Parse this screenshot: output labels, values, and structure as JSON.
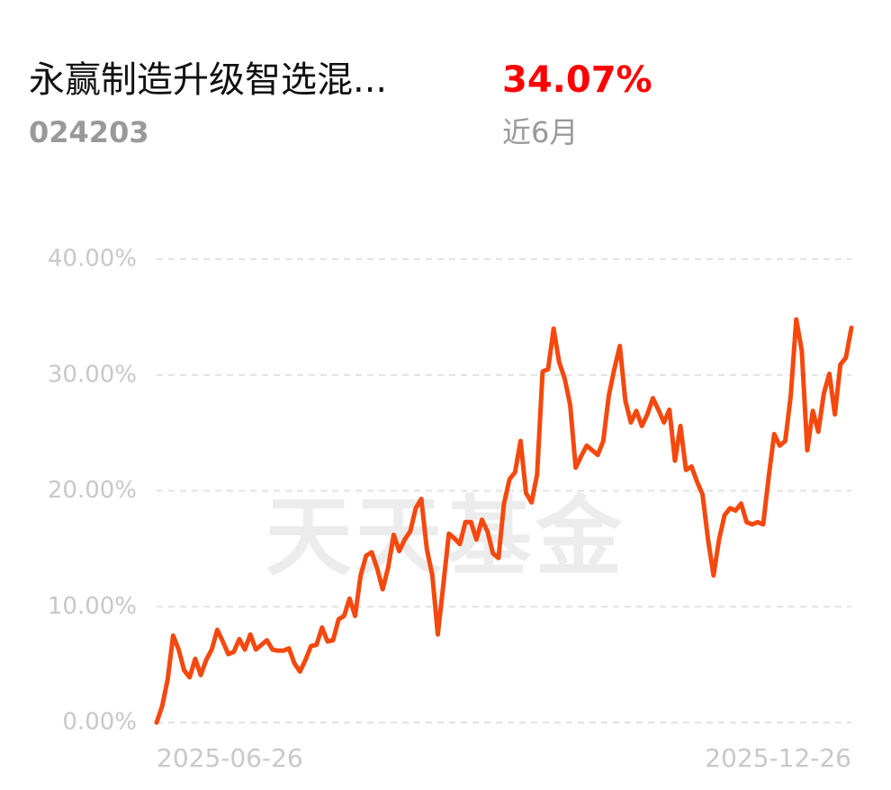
{
  "header": {
    "title": "永赢制造升级智选混...",
    "code": "024203",
    "return": "34.07%",
    "period": "近6月"
  },
  "watermark": "天天基金",
  "chart_data": {
    "type": "line",
    "categories": [
      "2025-06-26",
      null,
      null,
      null,
      null,
      null,
      null,
      null,
      null,
      null,
      null,
      null,
      null,
      null,
      null,
      null,
      null,
      null,
      null,
      null,
      null,
      null,
      null,
      null,
      null,
      null,
      null,
      null,
      null,
      null,
      null,
      null,
      null,
      null,
      null,
      null,
      null,
      null,
      null,
      null,
      null,
      null,
      null,
      null,
      null,
      null,
      null,
      null,
      null,
      null,
      null,
      null,
      null,
      null,
      null,
      null,
      null,
      null,
      null,
      null,
      null,
      null,
      null,
      null,
      null,
      null,
      null,
      null,
      null,
      null,
      null,
      null,
      null,
      null,
      null,
      null,
      null,
      null,
      null,
      null,
      null,
      null,
      null,
      null,
      null,
      null,
      null,
      null,
      null,
      null,
      null,
      null,
      null,
      null,
      null,
      null,
      null,
      null,
      null,
      null,
      null,
      null,
      null,
      null,
      null,
      null,
      null,
      null,
      null,
      null,
      null,
      null,
      null,
      null,
      null,
      null,
      null,
      null,
      null,
      null,
      null,
      null,
      null,
      null,
      null,
      null,
      "2025-12-26"
    ],
    "series": [
      {
        "color": "#f5480e",
        "values": [
          0,
          1.4,
          3.7,
          7.5,
          6.3,
          4.5,
          3.9,
          5.5,
          4.1,
          5.4,
          6.3,
          8.0,
          7.0,
          5.9,
          6.1,
          7.2,
          6.3,
          7.6,
          6.3,
          6.7,
          7.1,
          6.3,
          6.2,
          6.2,
          6.4,
          5.1,
          4.4,
          5.4,
          6.6,
          6.7,
          8.2,
          7.0,
          7.1,
          8.9,
          9.2,
          10.7,
          9.2,
          12.7,
          14.4,
          14.7,
          13.3,
          11.5,
          13.4,
          16.2,
          14.8,
          15.8,
          16.5,
          18.5,
          19.3,
          15.0,
          12.7,
          7.6,
          11.9,
          16.3,
          15.9,
          15.4,
          17.3,
          17.3,
          15.8,
          17.5,
          16.5,
          14.6,
          14.2,
          18.9,
          21.0,
          21.6,
          24.3,
          19.8,
          19.0,
          21.4,
          30.3,
          30.5,
          34.0,
          31.1,
          29.7,
          27.4,
          22.0,
          23.0,
          23.9,
          23.5,
          23.1,
          24.3,
          28.2,
          30.5,
          32.5,
          27.8,
          25.9,
          26.9,
          25.6,
          26.6,
          28.0,
          27.0,
          25.9,
          27.0,
          22.6,
          25.6,
          21.8,
          22.1,
          20.8,
          19.7,
          15.8,
          12.7,
          15.8,
          17.9,
          18.5,
          18.3,
          18.9,
          17.3,
          17.1,
          17.3,
          17.1,
          21.2,
          24.9,
          23.9,
          24.3,
          28.2,
          34.8,
          32.1,
          23.5,
          26.9,
          25.1,
          28.4,
          30.1,
          26.6,
          30.9,
          31.5,
          34.07
        ]
      }
    ],
    "ylim": [
      0,
      40
    ],
    "yticks": [
      {
        "value": 0,
        "label": "0.00%"
      },
      {
        "value": 10,
        "label": "10.00%"
      },
      {
        "value": 20,
        "label": "20.00%"
      },
      {
        "value": 30,
        "label": "30.00%"
      },
      {
        "value": 40,
        "label": "40.00%"
      }
    ],
    "grid": true
  }
}
